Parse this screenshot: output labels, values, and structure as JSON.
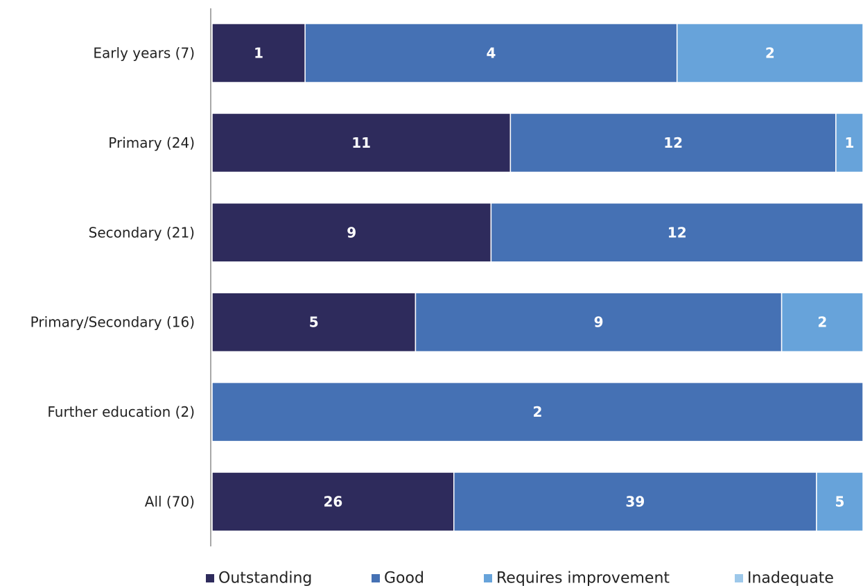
{
  "chart_data": {
    "type": "bar",
    "orientation": "horizontal",
    "stacked": true,
    "normalized_percent": true,
    "title": "",
    "xlabel": "",
    "ylabel": "",
    "categories": [
      "Early years (7)",
      "Primary (24)",
      "Secondary (21)",
      "Primary/Secondary (16)",
      "Further education (2)",
      "All (70)"
    ],
    "series": [
      {
        "name": "Outstanding",
        "color": "#2e2b5c",
        "values": [
          1,
          11,
          9,
          5,
          0,
          26
        ]
      },
      {
        "name": "Good",
        "color": "#4571b4",
        "values": [
          4,
          12,
          12,
          9,
          2,
          39
        ]
      },
      {
        "name": "Requires improvement",
        "color": "#67a3da",
        "values": [
          2,
          1,
          0,
          2,
          0,
          5
        ]
      },
      {
        "name": "Inadequate",
        "color": "#9dc8ea",
        "values": [
          0,
          0,
          0,
          0,
          0,
          0
        ]
      }
    ],
    "grid": false,
    "legend_position": "bottom"
  }
}
